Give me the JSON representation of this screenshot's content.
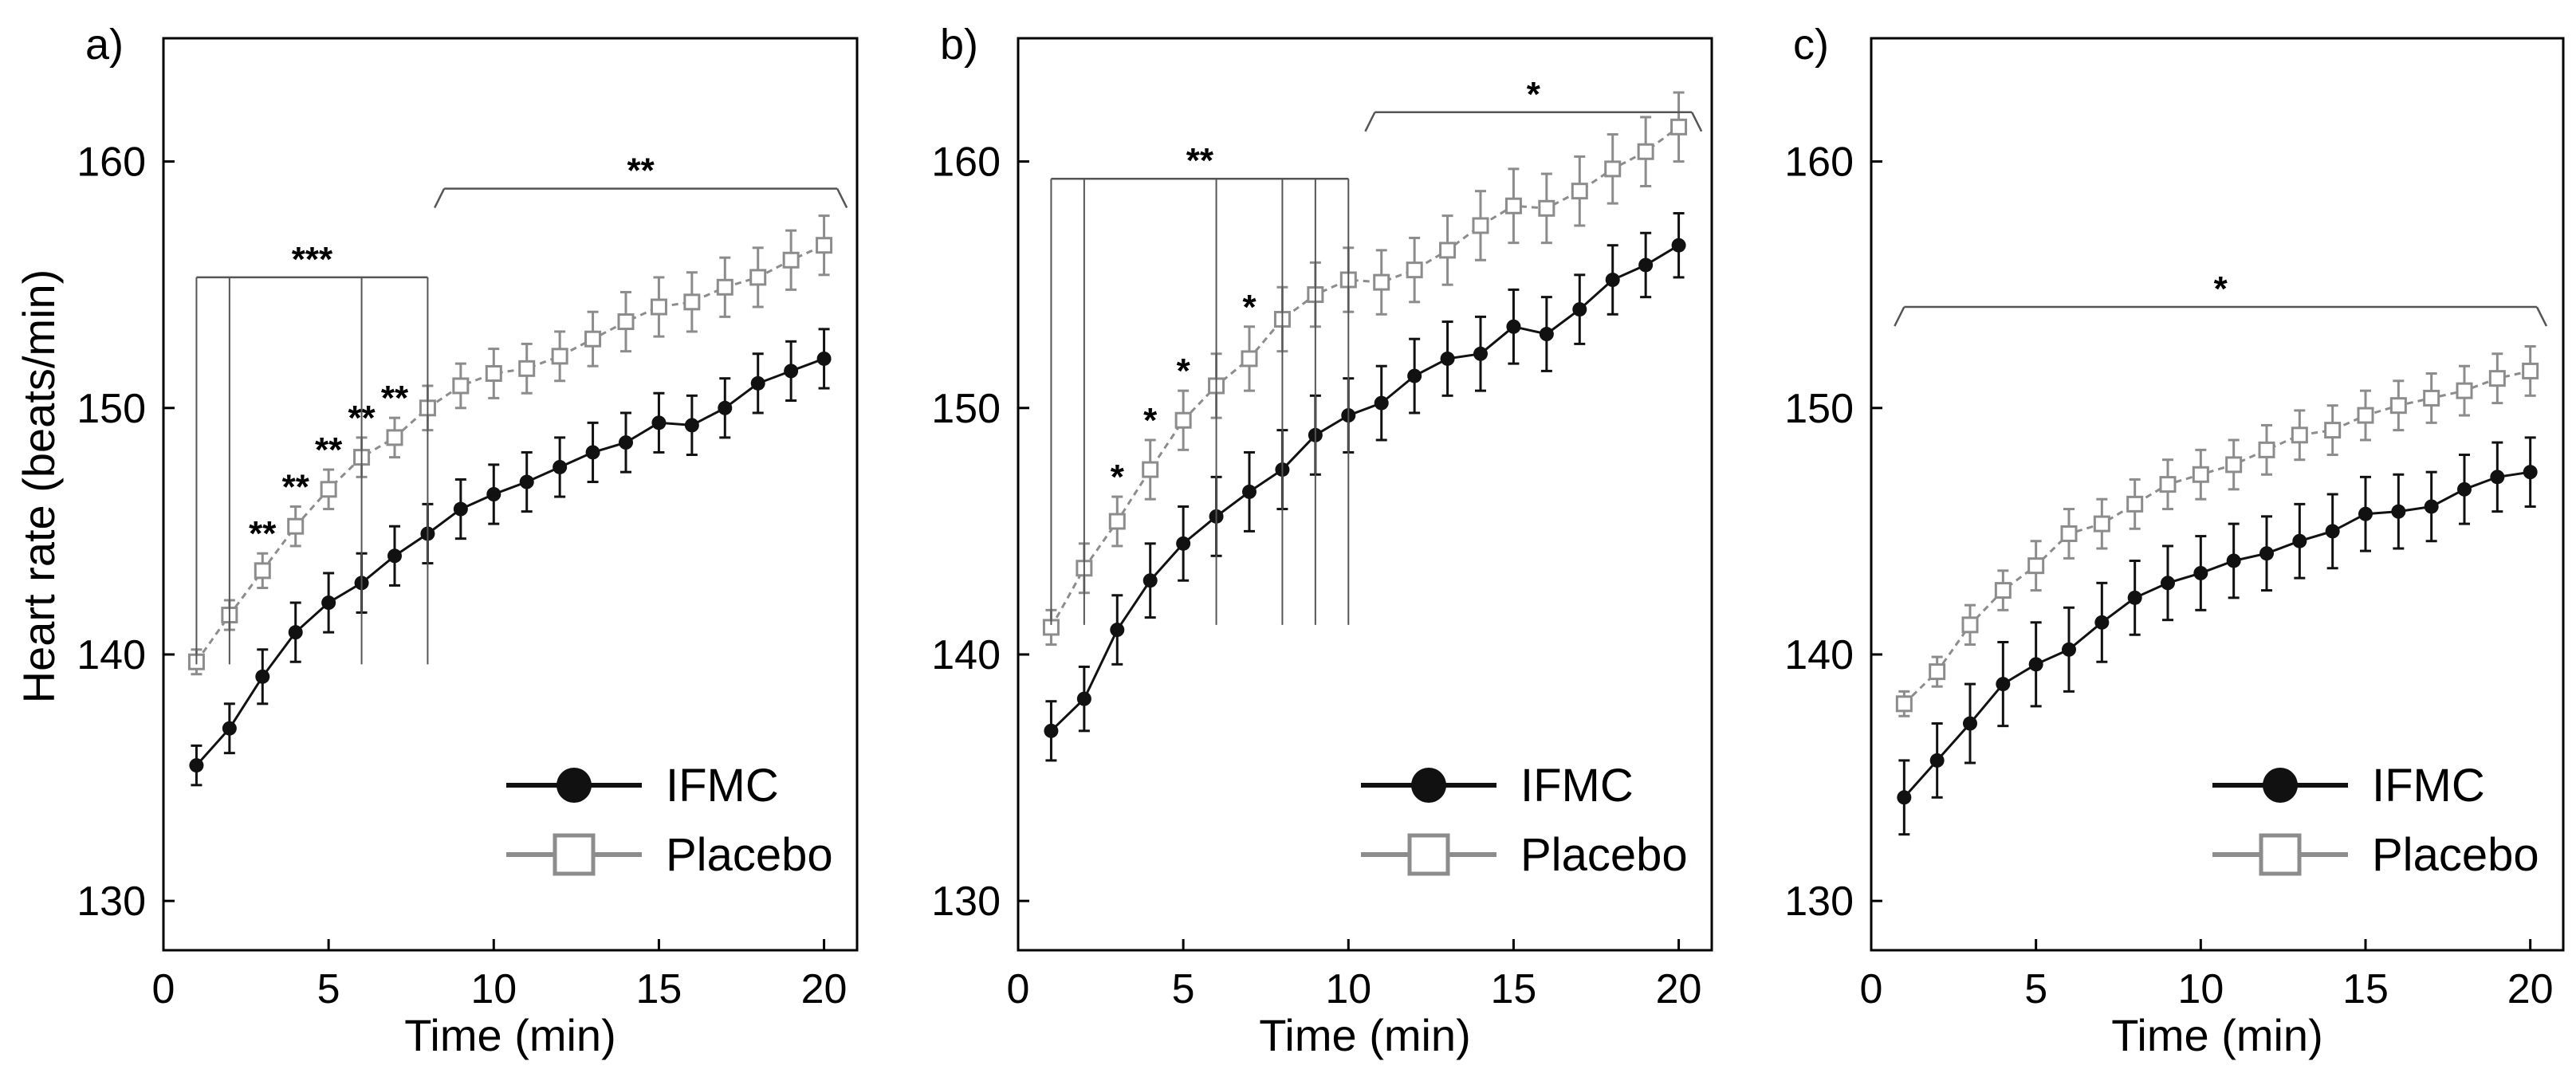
{
  "figure": {
    "ylabel": "Heart rate (beats/min)",
    "colors": {
      "ifmc": "#111111",
      "placebo": "#8c8c8c",
      "axis": "#000000",
      "bracket": "#555555"
    }
  },
  "chart_data": [
    {
      "type": "line",
      "panel_label": "a)",
      "xlabel": "Time (min)",
      "ylabel": "Heart rate (beats/min)",
      "xlim": [
        0,
        21
      ],
      "ylim": [
        128,
        165
      ],
      "xticks": [
        "0",
        "5",
        "10",
        "15",
        "20"
      ],
      "yticks": [
        "130",
        "140",
        "150",
        "160"
      ],
      "x": [
        1,
        2,
        3,
        4,
        5,
        6,
        7,
        8,
        9,
        10,
        11,
        12,
        13,
        14,
        15,
        16,
        17,
        18,
        19,
        20
      ],
      "series": [
        {
          "name": "IFMC",
          "values": [
            135.5,
            137.0,
            139.1,
            140.9,
            142.1,
            142.9,
            144.0,
            144.9,
            145.9,
            146.5,
            147.0,
            147.6,
            148.2,
            148.6,
            149.4,
            149.3,
            150.0,
            151.0,
            151.5,
            152.0
          ],
          "errors": [
            0.8,
            1.0,
            1.1,
            1.2,
            1.2,
            1.2,
            1.2,
            1.2,
            1.2,
            1.2,
            1.2,
            1.2,
            1.2,
            1.2,
            1.2,
            1.2,
            1.2,
            1.2,
            1.2,
            1.2
          ]
        },
        {
          "name": "Placebo",
          "values": [
            139.7,
            141.6,
            143.4,
            145.2,
            146.7,
            148.0,
            148.8,
            150.0,
            150.9,
            151.4,
            151.6,
            152.1,
            152.8,
            153.5,
            154.1,
            154.3,
            154.9,
            155.3,
            156.0,
            156.6
          ],
          "errors": [
            0.5,
            0.6,
            0.7,
            0.8,
            0.8,
            0.8,
            0.8,
            0.9,
            0.9,
            1.0,
            1.0,
            1.0,
            1.1,
            1.2,
            1.2,
            1.2,
            1.2,
            1.2,
            1.2,
            1.2
          ]
        }
      ],
      "annotations": [
        {
          "label": "**",
          "x": 3,
          "y": 143.4
        },
        {
          "label": "**",
          "x": 4,
          "y": 145.2
        },
        {
          "label": "**",
          "x": 5,
          "y": 146.7
        },
        {
          "label": "**",
          "x": 6,
          "y": 148.0
        },
        {
          "label": "**",
          "x": 7,
          "y": 148.8
        }
      ],
      "brackets": [
        {
          "label": "***",
          "y": 155.3,
          "x_start": 1,
          "x_end": 8,
          "drops": [
            1,
            2,
            6,
            8
          ],
          "drop_to": 139.6
        },
        {
          "label": "**",
          "y": 158.9,
          "x_start": 8.5,
          "x_end": 20.4,
          "end_ticks": true
        }
      ],
      "legend": {
        "position": "bottom-right",
        "entries": [
          "IFMC",
          "Placebo"
        ]
      }
    },
    {
      "type": "line",
      "panel_label": "b)",
      "xlabel": "Time (min)",
      "ylabel": "",
      "xlim": [
        0,
        21
      ],
      "ylim": [
        128,
        165
      ],
      "xticks": [
        "0",
        "5",
        "10",
        "15",
        "20"
      ],
      "yticks": [
        "130",
        "140",
        "150",
        "160"
      ],
      "x": [
        1,
        2,
        3,
        4,
        5,
        6,
        7,
        8,
        9,
        10,
        11,
        12,
        13,
        14,
        15,
        16,
        17,
        18,
        19,
        20
      ],
      "series": [
        {
          "name": "IFMC",
          "values": [
            136.9,
            138.2,
            141.0,
            143.0,
            144.5,
            145.6,
            146.6,
            147.5,
            148.9,
            149.7,
            150.2,
            151.3,
            152.0,
            152.2,
            153.3,
            153.0,
            154.0,
            155.2,
            155.8,
            156.6
          ],
          "errors": [
            1.2,
            1.3,
            1.4,
            1.5,
            1.5,
            1.6,
            1.6,
            1.6,
            1.6,
            1.5,
            1.5,
            1.5,
            1.5,
            1.5,
            1.5,
            1.5,
            1.4,
            1.4,
            1.3,
            1.3
          ]
        },
        {
          "name": "Placebo",
          "values": [
            141.1,
            143.5,
            145.4,
            147.5,
            149.5,
            150.9,
            152.0,
            153.6,
            154.6,
            155.2,
            155.1,
            155.6,
            156.4,
            157.4,
            158.2,
            158.1,
            158.8,
            159.7,
            160.4,
            161.4
          ],
          "errors": [
            0.7,
            1.0,
            1.0,
            1.2,
            1.2,
            1.3,
            1.3,
            1.3,
            1.3,
            1.3,
            1.3,
            1.3,
            1.4,
            1.4,
            1.5,
            1.4,
            1.4,
            1.4,
            1.4,
            1.4
          ]
        }
      ],
      "annotations": [
        {
          "label": "*",
          "x": 3,
          "y": 145.4
        },
        {
          "label": "*",
          "x": 4,
          "y": 147.5
        },
        {
          "label": "*",
          "x": 5,
          "y": 149.5
        },
        {
          "label": "*",
          "x": 7,
          "y": 152.0
        }
      ],
      "brackets": [
        {
          "label": "**",
          "y": 159.3,
          "x_start": 1,
          "x_end": 10,
          "drops": [
            1,
            2,
            6,
            8,
            9,
            10
          ],
          "drop_to": 141.2
        },
        {
          "label": "*",
          "y": 162.0,
          "x_start": 10.8,
          "x_end": 20.4,
          "end_ticks": true
        }
      ],
      "legend": {
        "position": "bottom-right",
        "entries": [
          "IFMC",
          "Placebo"
        ]
      }
    },
    {
      "type": "line",
      "panel_label": "c)",
      "xlabel": "Time (min)",
      "ylabel": "",
      "xlim": [
        0,
        21
      ],
      "ylim": [
        128,
        165
      ],
      "xticks": [
        "0",
        "5",
        "10",
        "15",
        "20"
      ],
      "yticks": [
        "130",
        "140",
        "150",
        "160"
      ],
      "x": [
        1,
        2,
        3,
        4,
        5,
        6,
        7,
        8,
        9,
        10,
        11,
        12,
        13,
        14,
        15,
        16,
        17,
        18,
        19,
        20
      ],
      "series": [
        {
          "name": "IFMC",
          "values": [
            134.2,
            135.7,
            137.2,
            138.8,
            139.6,
            140.2,
            141.3,
            142.3,
            142.9,
            143.3,
            143.8,
            144.1,
            144.6,
            145.0,
            145.7,
            145.8,
            146.0,
            146.7,
            147.2,
            147.4
          ],
          "errors": [
            1.5,
            1.5,
            1.6,
            1.7,
            1.7,
            1.7,
            1.6,
            1.5,
            1.5,
            1.5,
            1.5,
            1.5,
            1.5,
            1.5,
            1.5,
            1.5,
            1.4,
            1.4,
            1.4,
            1.4
          ]
        },
        {
          "name": "Placebo",
          "values": [
            138.0,
            139.3,
            141.2,
            142.6,
            143.6,
            144.9,
            145.3,
            146.1,
            146.9,
            147.3,
            147.7,
            148.3,
            148.9,
            149.1,
            149.7,
            150.1,
            150.4,
            150.7,
            151.2,
            151.5
          ],
          "errors": [
            0.5,
            0.6,
            0.8,
            0.8,
            1.0,
            1.0,
            1.0,
            1.0,
            1.0,
            1.0,
            1.0,
            1.0,
            1.0,
            1.0,
            1.0,
            1.0,
            1.0,
            1.0,
            1.0,
            1.0
          ]
        }
      ],
      "annotations": [],
      "brackets": [
        {
          "label": "*",
          "y": 154.1,
          "x_start": 1,
          "x_end": 20.2,
          "end_ticks": true
        }
      ],
      "legend": {
        "position": "bottom-right",
        "entries": [
          "IFMC",
          "Placebo"
        ]
      }
    }
  ]
}
